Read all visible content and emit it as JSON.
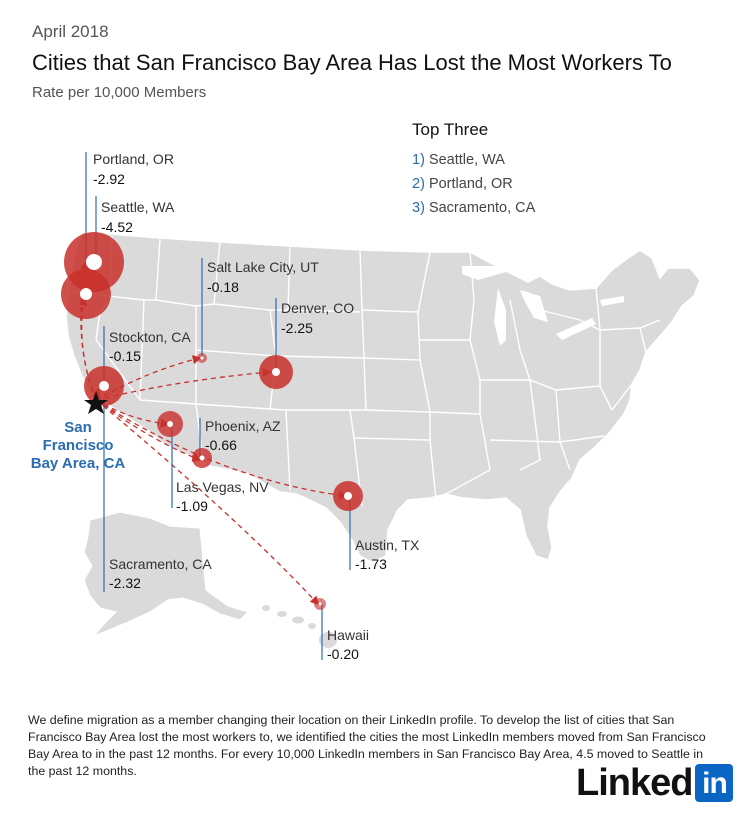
{
  "header": {
    "date": "April 2018",
    "title": "Cities that San Francisco Bay Area Has Lost the Most Workers To",
    "subtitle": "Rate per 10,000 Members"
  },
  "top_three": {
    "title": "Top Three",
    "items": [
      {
        "num": "1)",
        "label": "Seattle, WA"
      },
      {
        "num": "2)",
        "label": "Portland, OR"
      },
      {
        "num": "3)",
        "label": "Sacramento, CA"
      }
    ]
  },
  "origin": {
    "label_lines": [
      "San",
      "Francisco",
      "Bay Area, CA"
    ]
  },
  "cities": [
    {
      "key": "portland",
      "name": "Portland, OR",
      "value": "-2.92"
    },
    {
      "key": "seattle",
      "name": "Seattle, WA",
      "value": "-4.52"
    },
    {
      "key": "saltlake",
      "name": "Salt Lake City, UT",
      "value": "-0.18"
    },
    {
      "key": "denver",
      "name": "Denver, CO",
      "value": "-2.25"
    },
    {
      "key": "stockton",
      "name": "Stockton, CA",
      "value": "-0.15"
    },
    {
      "key": "phoenix",
      "name": "Phoenix, AZ",
      "value": "-0.66"
    },
    {
      "key": "lasvegas",
      "name": "Las Vegas, NV",
      "value": "-1.09"
    },
    {
      "key": "austin",
      "name": "Austin, TX",
      "value": "-1.73"
    },
    {
      "key": "sacramento",
      "name": "Sacramento, CA",
      "value": "-2.32"
    },
    {
      "key": "hawaii",
      "name": "Hawaii",
      "value": "-0.20"
    }
  ],
  "footnote": "We define migration as a member changing their location on their LinkedIn profile. To develop the list of cities that San Francisco Bay Area lost the most workers to, we identified the cities the most LinkedIn members moved from San Francisco Bay Area to in the past 12 months. For every 10,000 LinkedIn members in San Francisco Bay Area, 4.5 moved to Seattle in the past 12 months.",
  "logo": {
    "text": "Linked",
    "in": "in"
  },
  "colors": {
    "land": "#dadada",
    "border": "#ffffff",
    "circle": "#c9302c",
    "arrow": "#c9302c",
    "leader": "#2a6db0",
    "origin_label": "#2a6db0"
  }
}
